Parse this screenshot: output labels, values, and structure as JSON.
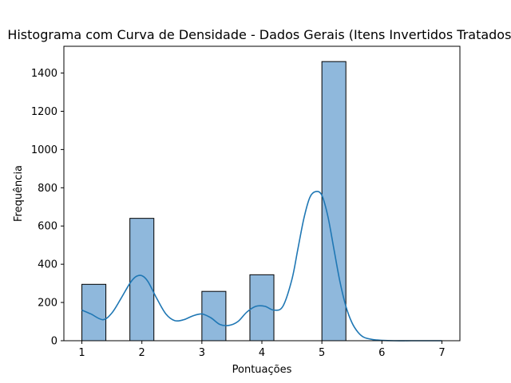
{
  "chart_data": {
    "type": "bar",
    "title": "Histograma com Curva de Densidade - Dados Gerais (Itens Invertidos Tratados)",
    "xlabel": "Pontuações",
    "ylabel": "Frequência",
    "xlim": [
      0.7,
      7.3
    ],
    "ylim": [
      0,
      1540
    ],
    "x_ticks": [
      1,
      2,
      3,
      4,
      5,
      6,
      7
    ],
    "y_ticks": [
      0,
      200,
      400,
      600,
      800,
      1000,
      1200,
      1400
    ],
    "grid": false,
    "bin_width": 0.4,
    "bars": [
      {
        "x0": 1.0,
        "x1": 1.4,
        "value": 295
      },
      {
        "x0": 1.8,
        "x1": 2.2,
        "value": 640
      },
      {
        "x0": 3.0,
        "x1": 3.4,
        "value": 258
      },
      {
        "x0": 3.8,
        "x1": 4.2,
        "value": 345
      },
      {
        "x0": 5.0,
        "x1": 5.4,
        "value": 1460
      }
    ],
    "density_curve": {
      "x": [
        1.0,
        1.15,
        1.35,
        1.5,
        1.65,
        1.8,
        1.9,
        2.0,
        2.1,
        2.25,
        2.4,
        2.55,
        2.7,
        2.85,
        3.0,
        3.15,
        3.3,
        3.45,
        3.6,
        3.75,
        3.9,
        4.05,
        4.2,
        4.35,
        4.5,
        4.6,
        4.7,
        4.8,
        4.9,
        5.0,
        5.1,
        5.2,
        5.3,
        5.4,
        5.5,
        5.6,
        5.7,
        5.85,
        6.0,
        6.2,
        6.5,
        7.0
      ],
      "y": [
        160,
        140,
        110,
        145,
        220,
        300,
        335,
        340,
        310,
        220,
        140,
        105,
        110,
        130,
        140,
        120,
        85,
        80,
        100,
        150,
        180,
        180,
        160,
        180,
        320,
        480,
        640,
        750,
        780,
        760,
        650,
        480,
        310,
        180,
        95,
        45,
        18,
        6,
        2,
        0,
        0,
        0
      ]
    },
    "colors": {
      "bar_fill": "#8fb8dc",
      "bar_edge": "#000000",
      "curve": "#1f77b4"
    }
  }
}
